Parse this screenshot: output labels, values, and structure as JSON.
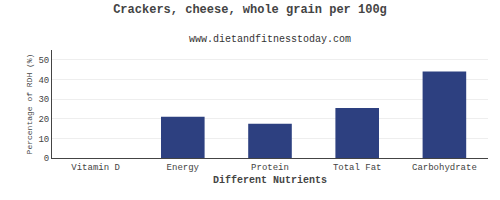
{
  "chart_data": {
    "type": "bar",
    "title": "Crackers, cheese, whole grain per 100g",
    "subtitle": "www.dietandfitnesstoday.com",
    "xlabel": "Different Nutrients",
    "ylabel": "Percentage of RDH (%)",
    "categories": [
      "Vitamin D",
      "Energy",
      "Protein",
      "Total Fat",
      "Carbohydrate"
    ],
    "values": [
      0,
      21,
      17.5,
      25.5,
      44
    ],
    "color": "#2d4080",
    "ylim": [
      0,
      55
    ],
    "yticks": [
      0,
      10,
      20,
      30,
      40,
      50
    ],
    "grid": true
  }
}
